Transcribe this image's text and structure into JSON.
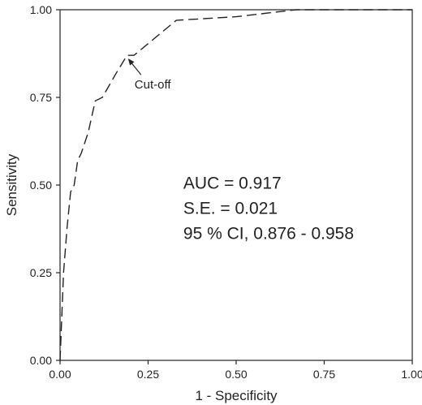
{
  "chart_data": {
    "type": "line",
    "title": "",
    "xlabel": "1 - Specificity",
    "ylabel": "Sensitivity",
    "xlim": [
      0,
      1
    ],
    "ylim": [
      0,
      1
    ],
    "x_ticks": [
      "0.00",
      "0.25",
      "0.50",
      "0.75",
      "1.00"
    ],
    "y_ticks": [
      "0.00",
      "0.25",
      "0.50",
      "0.75",
      "1.00"
    ],
    "grid": false,
    "legend": "none",
    "line_style": "dashed",
    "line_color": "#222222",
    "series": [
      {
        "points": [
          [
            0.0,
            0.0
          ],
          [
            0.01,
            0.25
          ],
          [
            0.02,
            0.38
          ],
          [
            0.03,
            0.48
          ],
          [
            0.04,
            0.5
          ],
          [
            0.05,
            0.57
          ],
          [
            0.06,
            0.59
          ],
          [
            0.08,
            0.65
          ],
          [
            0.1,
            0.74
          ],
          [
            0.12,
            0.75
          ],
          [
            0.16,
            0.82
          ],
          [
            0.19,
            0.87
          ],
          [
            0.21,
            0.87
          ],
          [
            0.33,
            0.97
          ],
          [
            0.5,
            0.98
          ],
          [
            0.67,
            1.0
          ],
          [
            1.0,
            1.0
          ]
        ]
      }
    ],
    "annotations": {
      "cutoff": {
        "label": "Cut-off",
        "x": 0.2,
        "y": 0.87
      },
      "stats": [
        "AUC = 0.917",
        "S.E. = 0.021",
        "95 % CI, 0.876 - 0.958"
      ]
    }
  }
}
